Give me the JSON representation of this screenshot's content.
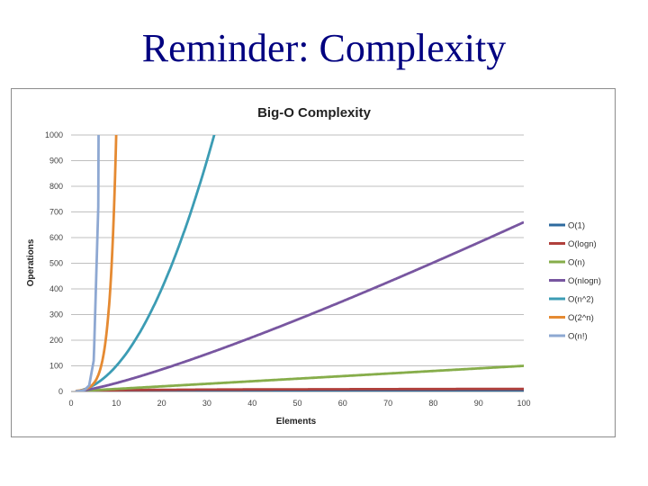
{
  "slide": {
    "title": "Reminder: Complexity"
  },
  "chart_data": {
    "type": "line",
    "title": "Big-O Complexity",
    "xlabel": "Elements",
    "ylabel": "Operations",
    "xlim": [
      0,
      100
    ],
    "ylim": [
      0,
      1000
    ],
    "x_ticks": [
      0,
      10,
      20,
      30,
      40,
      50,
      60,
      70,
      80,
      90,
      100
    ],
    "y_ticks": [
      0,
      100,
      200,
      300,
      400,
      500,
      600,
      700,
      800,
      900,
      1000
    ],
    "grid": "horizontal",
    "legend_position": "right",
    "series": [
      {
        "name": "O(1)",
        "function": "constant",
        "color": "#2e6a9e"
      },
      {
        "name": "O(logn)",
        "function": "log",
        "color": "#b0403c"
      },
      {
        "name": "O(n)",
        "function": "linear",
        "color": "#86ad4a"
      },
      {
        "name": "O(nlogn)",
        "function": "nlogn",
        "color": "#7856a0"
      },
      {
        "name": "O(n^2)",
        "function": "quadratic",
        "color": "#3c9cb4"
      },
      {
        "name": "O(2^n)",
        "function": "exponential",
        "color": "#e58a32"
      },
      {
        "name": "O(n!)",
        "function": "factorial",
        "color": "#8ea8d2"
      }
    ]
  }
}
